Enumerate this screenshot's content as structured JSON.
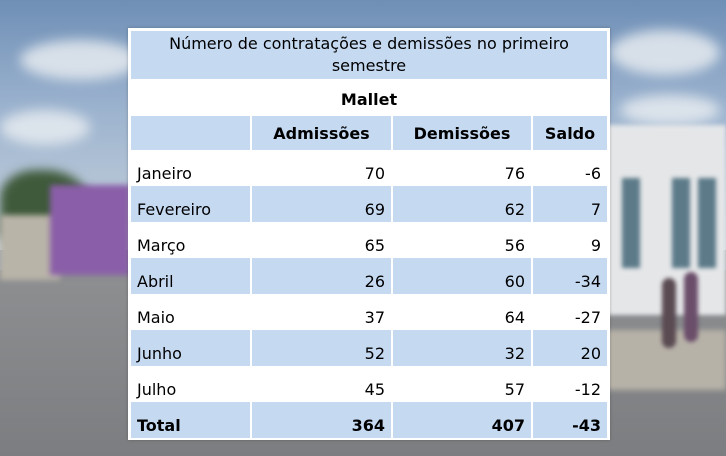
{
  "table": {
    "title": "Número de contratações e demissões no primeiro semestre",
    "subtitle": "Mallet",
    "columns": [
      "",
      "Admissões",
      "Demissões",
      "Saldo"
    ],
    "rows": [
      {
        "label": "Janeiro",
        "admissoes": "70",
        "demissoes": "76",
        "saldo": "-6"
      },
      {
        "label": "Fevereiro",
        "admissoes": "69",
        "demissoes": "62",
        "saldo": "7"
      },
      {
        "label": "Março",
        "admissoes": "65",
        "demissoes": "56",
        "saldo": "9"
      },
      {
        "label": "Abril",
        "admissoes": "26",
        "demissoes": "60",
        "saldo": "-34"
      },
      {
        "label": "Maio",
        "admissoes": "37",
        "demissoes": "64",
        "saldo": "-27"
      },
      {
        "label": "Junho",
        "admissoes": "52",
        "demissoes": "32",
        "saldo": "20"
      },
      {
        "label": "Julho",
        "admissoes": "45",
        "demissoes": "57",
        "saldo": "-12"
      }
    ],
    "total": {
      "label": "Total",
      "admissoes": "364",
      "demissoes": "407",
      "saldo": "-43"
    }
  },
  "colors": {
    "header_fill": "#c5d9f1",
    "card_bg": "#ffffff"
  }
}
